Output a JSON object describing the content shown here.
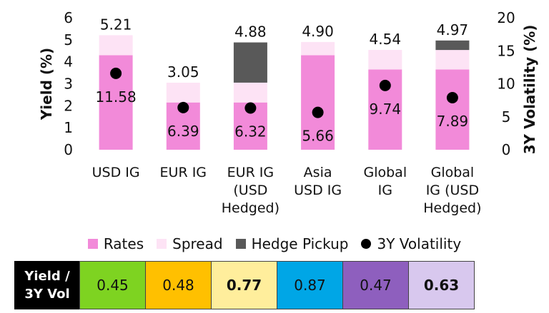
{
  "chart_data": {
    "type": "bar",
    "stacked": true,
    "categories": [
      "USD IG",
      "EUR IG",
      "EUR IG (USD Hedged)",
      "Asia USD IG",
      "Global IG",
      "Global IG (USD Hedged)"
    ],
    "category_lines": [
      [
        "USD IG"
      ],
      [
        "EUR IG"
      ],
      [
        "EUR IG",
        "(USD",
        "Hedged)"
      ],
      [
        "Asia",
        "USD IG"
      ],
      [
        "Global",
        "IG"
      ],
      [
        "Global",
        "IG (USD",
        "Hedged)"
      ]
    ],
    "series": [
      {
        "name": "Rates",
        "color": "#F28AD9",
        "values": [
          4.3,
          2.15,
          2.15,
          4.3,
          3.65,
          3.65
        ]
      },
      {
        "name": "Spread",
        "color": "#FDE3F5",
        "values": [
          0.91,
          0.9,
          0.9,
          0.6,
          0.89,
          0.89
        ]
      },
      {
        "name": "Hedge Pickup",
        "color": "#595959",
        "values": [
          0,
          0,
          1.83,
          0,
          0,
          0.43
        ]
      }
    ],
    "total_labels": [
      "5.21",
      "3.05",
      "4.88",
      "4.90",
      "4.54",
      "4.97"
    ],
    "volatility": {
      "name": "3Y Volatility",
      "axis": "right",
      "color": "#000000",
      "values": [
        11.58,
        6.39,
        6.32,
        5.66,
        9.74,
        7.89
      ],
      "labels": [
        "11.58",
        "6.39",
        "6.32",
        "5.66",
        "9.74",
        "7.89"
      ]
    },
    "ylabel": "Yield (%)",
    "y2label": "3Y Volatility (%)",
    "ylim": [
      0,
      6
    ],
    "y2lim": [
      0,
      20
    ],
    "yticks": [
      "0",
      "1",
      "2",
      "3",
      "4",
      "5",
      "6"
    ],
    "y2ticks": [
      "0",
      "5",
      "10",
      "15",
      "20"
    ],
    "grid": false,
    "legend_position": "bottom"
  },
  "legend": {
    "rates": "Rates",
    "spread": "Spread",
    "hedge": "Hedge Pickup",
    "vol": "3Y Volatility"
  },
  "ratio_table": {
    "header_line1": "Yield /",
    "header_line2": "3Y Vol",
    "cells": [
      {
        "value": "0.45",
        "color": "#7ED321",
        "bold": false
      },
      {
        "value": "0.48",
        "color": "#FFC000",
        "bold": false
      },
      {
        "value": "0.77",
        "color": "#FFEE9C",
        "bold": true
      },
      {
        "value": "0.87",
        "color": "#00A6E6",
        "bold": false
      },
      {
        "value": "0.47",
        "color": "#8E5FBE",
        "bold": false
      },
      {
        "value": "0.63",
        "color": "#D8C8EE",
        "bold": true
      }
    ]
  }
}
